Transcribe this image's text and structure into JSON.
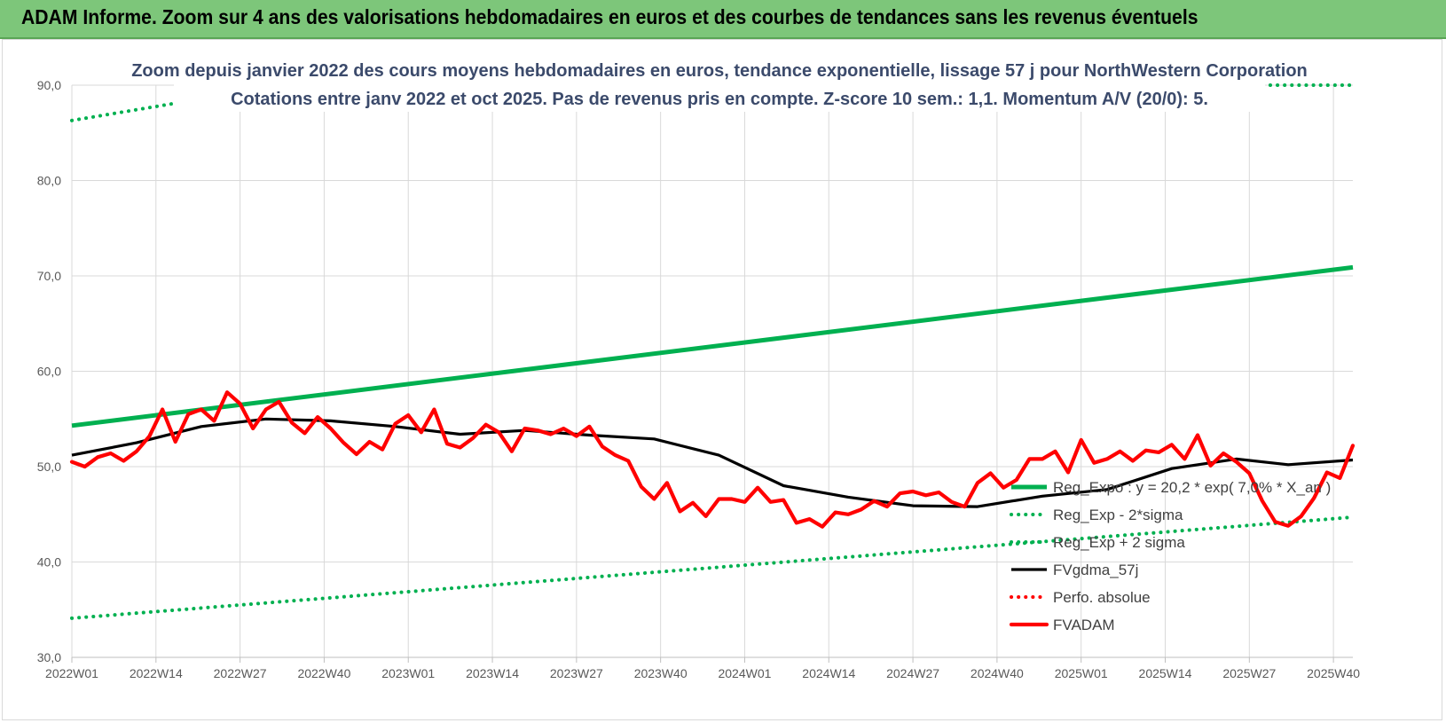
{
  "header": {
    "title": "ADAM Informe. Zoom sur 4 ans des valorisations hebdomadaires en euros et des courbes de tendances sans les revenus éventuels"
  },
  "chart_data": {
    "type": "line",
    "title": "Zoom depuis janvier 2022 des cours moyens hebdomadaires en euros, tendance exponentielle, lissage 57 j pour NorthWestern Corporation",
    "subtitle": "Cotations entre janv 2022 et oct 2025. Pas de revenus pris en compte. Z-score 10 sem.: 1,1. Momentum A/V (20/0): 5.",
    "ylim": [
      30,
      90
    ],
    "yticks": [
      "30,0",
      "40,0",
      "50,0",
      "60,0",
      "70,0",
      "80,0",
      "90,0"
    ],
    "x_tick_labels": [
      "2022W01",
      "2022W14",
      "2022W27",
      "2022W40",
      "2023W01",
      "2023W14",
      "2023W27",
      "2023W40",
      "2024W01",
      "2024W14",
      "2024W27",
      "2024W40",
      "2025W01",
      "2025W14",
      "2025W27",
      "2025W40"
    ],
    "n_points": 199,
    "grid": true,
    "legend_position": "bottom-right",
    "series": [
      {
        "name": "Reg_Expo : y = 20,2 * exp( 7,0% * X_an )",
        "color": "#00b050",
        "style": "solid",
        "x": [
          0,
          198
        ],
        "y": [
          54.3,
          70.9
        ]
      },
      {
        "name": "Reg_Exp - 2*sigma",
        "color": "#00b050",
        "style": "dotted",
        "x": [
          0,
          198
        ],
        "y": [
          34.1,
          44.7
        ]
      },
      {
        "name": "Reg_Exp + 2 sigma",
        "color": "#00b050",
        "style": "dotted",
        "x": [
          0,
          16,
          176,
          198
        ],
        "y": [
          86.3,
          88.1,
          90.0,
          90.0
        ]
      },
      {
        "name": "FVgdma_57j",
        "color": "#000000",
        "style": "solid",
        "x": [
          0,
          10,
          20,
          30,
          40,
          50,
          60,
          70,
          80,
          90,
          100,
          110,
          120,
          130,
          140,
          150,
          160,
          170,
          180,
          188,
          198
        ],
        "y": [
          51.2,
          52.5,
          54.2,
          55.0,
          54.8,
          54.2,
          53.4,
          53.8,
          53.3,
          52.9,
          51.2,
          48.0,
          46.8,
          45.9,
          45.8,
          46.9,
          47.6,
          49.8,
          50.8,
          50.2,
          50.7
        ]
      },
      {
        "name": "Perfo. absolue",
        "color": "#ff0000",
        "style": "dotted",
        "x": [],
        "y": []
      },
      {
        "name": "FVADAM",
        "color": "#ff0000",
        "style": "solid",
        "x": [
          0,
          2,
          4,
          6,
          8,
          10,
          12,
          14,
          16,
          18,
          20,
          22,
          24,
          26,
          28,
          30,
          32,
          34,
          36,
          38,
          40,
          42,
          44,
          46,
          48,
          50,
          52,
          54,
          56,
          58,
          60,
          62,
          64,
          66,
          68,
          70,
          72,
          74,
          76,
          78,
          80,
          82,
          84,
          86,
          88,
          90,
          92,
          94,
          96,
          98,
          100,
          102,
          104,
          106,
          108,
          110,
          112,
          114,
          116,
          118,
          120,
          122,
          124,
          126,
          128,
          130,
          132,
          134,
          136,
          138,
          140,
          142,
          144,
          146,
          148,
          150,
          152,
          154,
          156,
          158,
          160,
          162,
          164,
          166,
          168,
          170,
          172,
          174,
          176,
          178,
          180,
          182,
          184,
          186,
          188,
          190,
          192,
          194,
          196,
          198
        ],
        "y": [
          50.5,
          50.0,
          51.0,
          51.4,
          50.6,
          51.6,
          53.2,
          56.0,
          52.6,
          55.5,
          56.0,
          54.8,
          57.8,
          56.6,
          54.0,
          56.0,
          56.8,
          54.6,
          53.5,
          55.2,
          54.0,
          52.5,
          51.3,
          52.6,
          51.8,
          54.5,
          55.4,
          53.6,
          56.0,
          52.4,
          52.0,
          53.0,
          54.4,
          53.6,
          51.6,
          54.0,
          53.8,
          53.4,
          54.0,
          53.2,
          54.2,
          52.1,
          51.2,
          50.6,
          47.9,
          46.6,
          48.3,
          45.3,
          46.2,
          44.8,
          46.6,
          46.6,
          46.3,
          47.8,
          46.3,
          46.5,
          44.1,
          44.5,
          43.7,
          45.2,
          45.0,
          45.5,
          46.4,
          45.8,
          47.2,
          47.4,
          47.0,
          47.3,
          46.3,
          45.8,
          48.3,
          49.3,
          47.8,
          48.6,
          50.8,
          50.8,
          51.6,
          49.4,
          52.8,
          50.4,
          50.8,
          51.6,
          50.6,
          51.7,
          51.5,
          52.3,
          50.8,
          53.3,
          50.1,
          51.4,
          50.5,
          49.3,
          46.4,
          44.2,
          43.8,
          44.8,
          46.7,
          49.4,
          48.8,
          52.2
        ]
      }
    ]
  }
}
